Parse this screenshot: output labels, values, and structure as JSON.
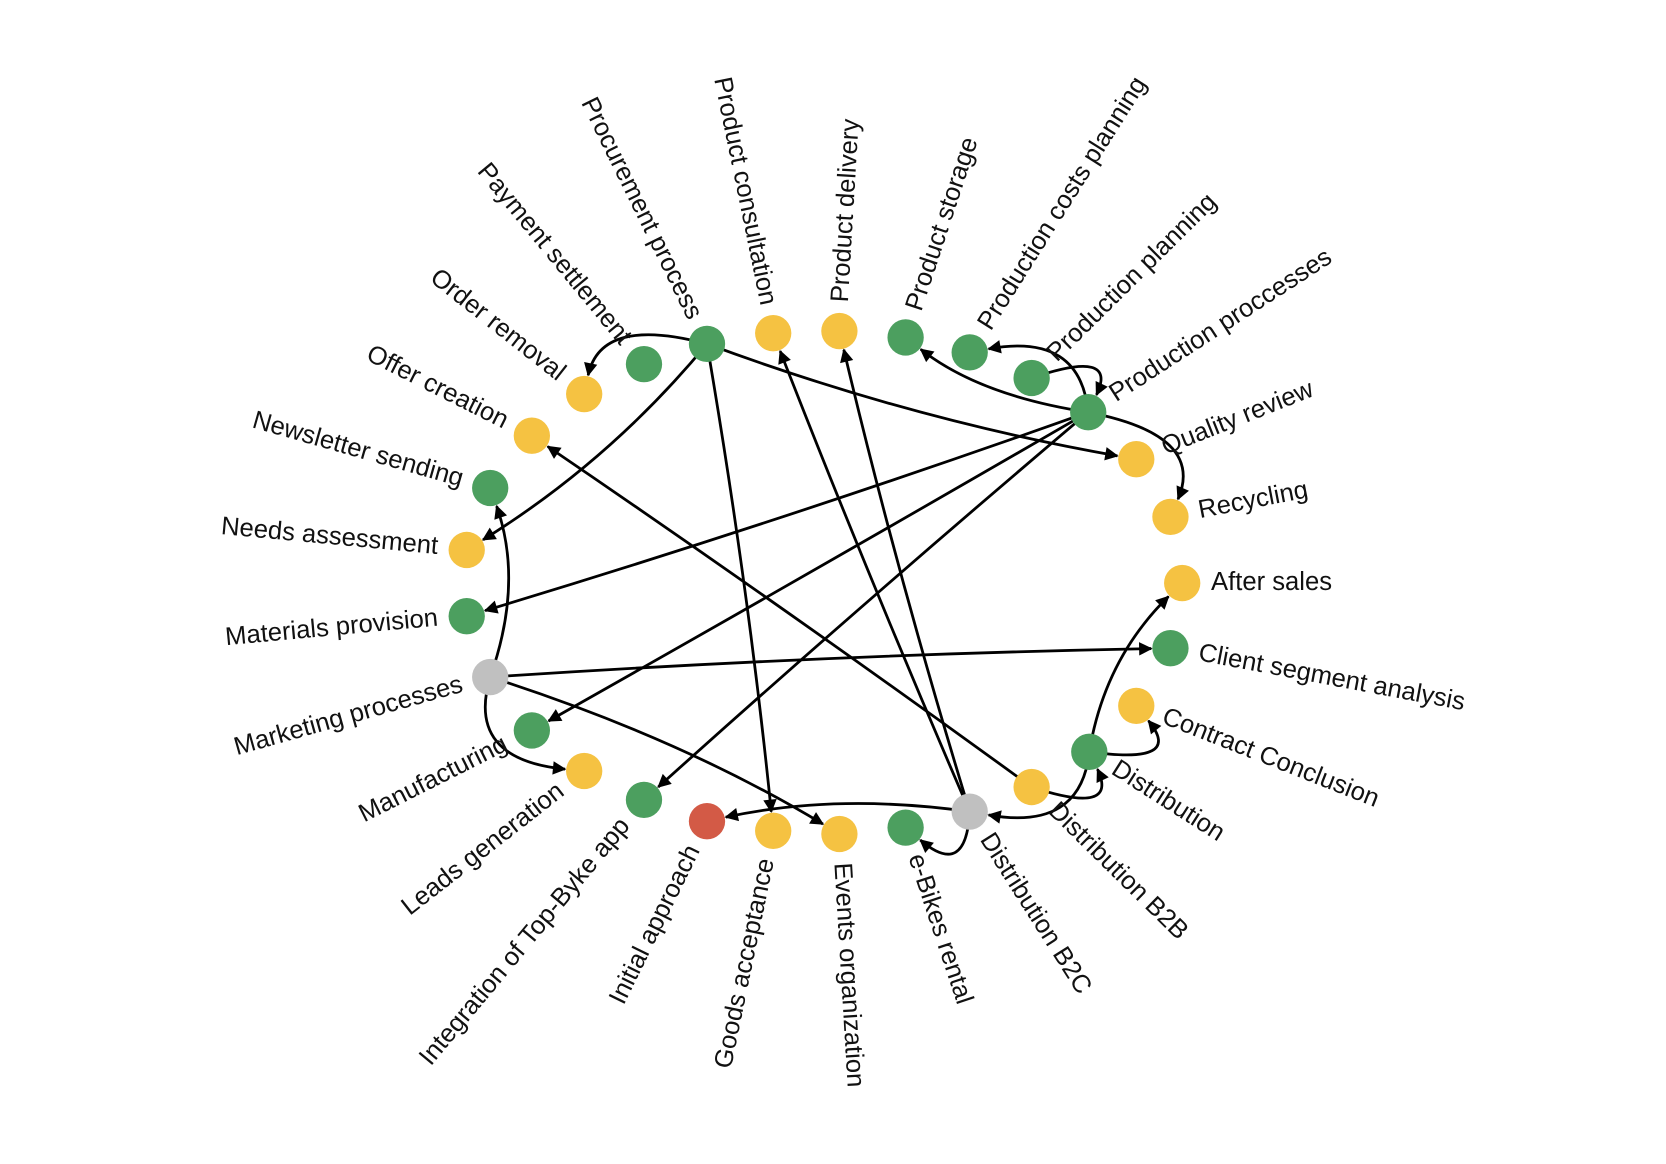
{
  "nodes": [
    {
      "label": "Product delivery",
      "color": "#f5c242"
    },
    {
      "label": "Product storage",
      "color": "#4c9f5f"
    },
    {
      "label": "Production costs planning",
      "color": "#4c9f5f"
    },
    {
      "label": "Production planning",
      "color": "#4c9f5f"
    },
    {
      "label": "Production proccesses",
      "color": "#4c9f5f"
    },
    {
      "label": "Quality review",
      "color": "#f5c242"
    },
    {
      "label": "Recycling",
      "color": "#f5c242"
    },
    {
      "label": "After sales",
      "color": "#f5c242"
    },
    {
      "label": "Client segment analysis",
      "color": "#4c9f5f"
    },
    {
      "label": "Contract Conclusion",
      "color": "#f5c242"
    },
    {
      "label": "Distribution",
      "color": "#4c9f5f"
    },
    {
      "label": "Distribution B2B",
      "color": "#f5c242"
    },
    {
      "label": "Distribution B2C",
      "color": "#c0c0c0"
    },
    {
      "label": "e-Bikes rental",
      "color": "#4c9f5f"
    },
    {
      "label": "Events organization",
      "color": "#f5c242"
    },
    {
      "label": "Goods acceptance",
      "color": "#f5c242"
    },
    {
      "label": "Initial approach",
      "color": "#d35a46"
    },
    {
      "label": "Integration of Top-Byke app",
      "color": "#4c9f5f"
    },
    {
      "label": "Leads generation",
      "color": "#f5c242"
    },
    {
      "label": "Manufacturing",
      "color": "#4c9f5f"
    },
    {
      "label": "Marketing processes",
      "color": "#c0c0c0"
    },
    {
      "label": "Materials provision",
      "color": "#4c9f5f"
    },
    {
      "label": "Needs assessment",
      "color": "#f5c242"
    },
    {
      "label": "Newsletter sending",
      "color": "#4c9f5f"
    },
    {
      "label": "Offer creation",
      "color": "#f5c242"
    },
    {
      "label": "Order removal",
      "color": "#f5c242"
    },
    {
      "label": "Payment settlement",
      "color": "#4c9f5f"
    },
    {
      "label": "Procurement process",
      "color": "#4c9f5f"
    },
    {
      "label": "Product consultation",
      "color": "#f5c242"
    }
  ]
}
